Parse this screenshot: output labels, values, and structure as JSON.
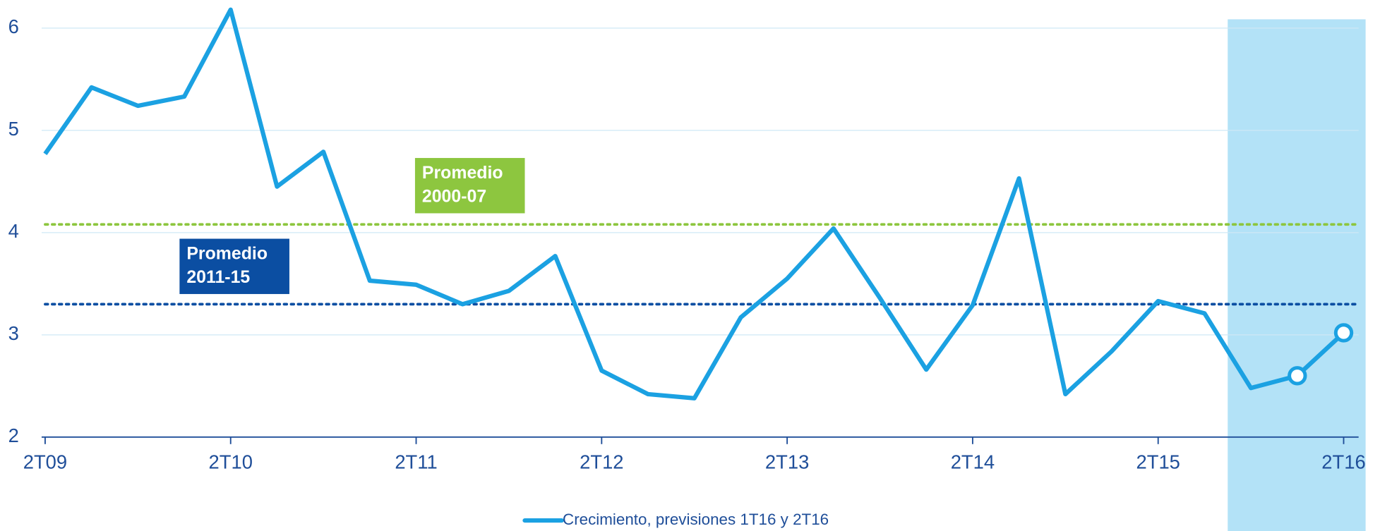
{
  "chart_data": {
    "type": "line",
    "categories": [
      "2T09",
      null,
      null,
      null,
      "2T10",
      null,
      null,
      null,
      "2T11",
      null,
      null,
      null,
      "2T12",
      null,
      null,
      null,
      "2T13",
      null,
      null,
      null,
      "2T14",
      null,
      null,
      null,
      "2T15",
      null,
      null,
      null,
      "2T16"
    ],
    "series": [
      {
        "name": "Crecimiento, previsiones 1T16 y 2T16",
        "color": "#1ba1e2",
        "values": [
          4.77,
          5.42,
          5.24,
          5.33,
          6.18,
          4.45,
          4.79,
          3.53,
          3.49,
          3.3,
          3.43,
          3.77,
          2.65,
          2.42,
          2.38,
          3.17,
          3.55,
          4.04,
          3.36,
          2.66,
          3.29,
          4.53,
          2.42,
          2.84,
          3.33,
          3.21,
          2.48,
          2.6,
          3.02
        ]
      }
    ],
    "ylim": [
      2,
      6
    ],
    "yticks": [
      2,
      3,
      4,
      5,
      6
    ],
    "grid": true,
    "reference_lines": [
      {
        "label": [
          "Promedio",
          "2000-07"
        ],
        "value": 4.08,
        "color": "#8dc63f"
      },
      {
        "label": [
          "Promedio",
          "2011-15"
        ],
        "value": 3.3,
        "color": "#0b4ea2"
      }
    ]
  }
}
